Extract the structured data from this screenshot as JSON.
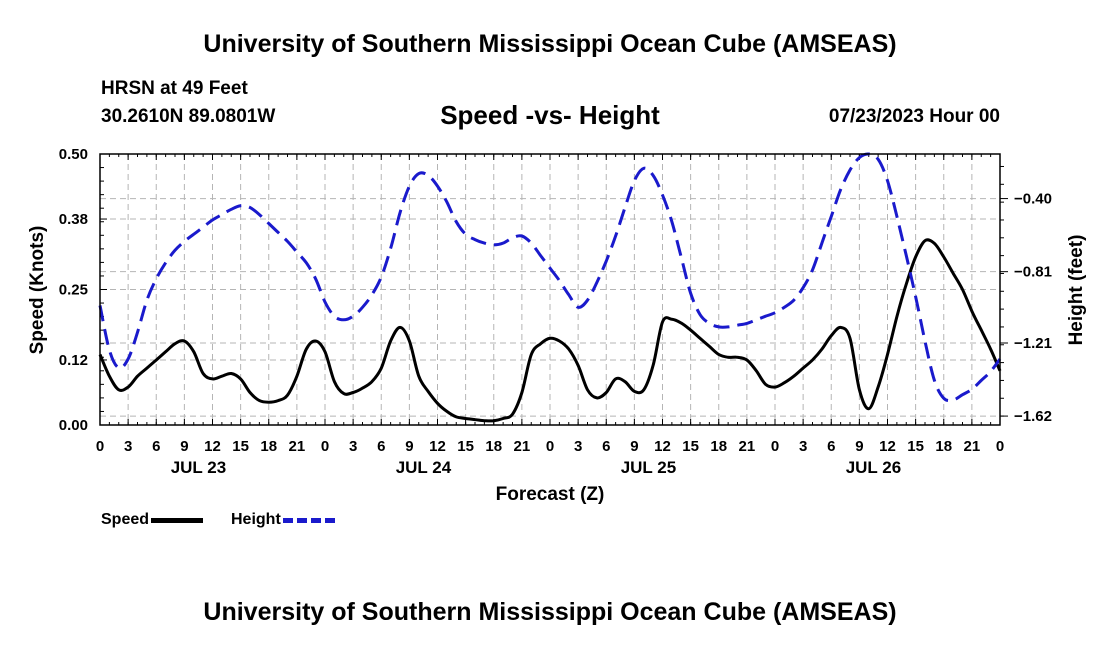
{
  "header": {
    "title_top": "University of Southern Mississippi Ocean Cube (AMSEAS)",
    "station": "HRSN at 49 Feet",
    "coords": "30.2610N  89.0801W",
    "subtitle": "Speed -vs- Height",
    "datetime": "07/23/2023 Hour 00"
  },
  "footer": {
    "title_bottom": "University of Southern Mississippi Ocean Cube (AMSEAS)"
  },
  "legend": {
    "speed_label": "Speed",
    "height_label": "Height",
    "speed_color": "#000000",
    "height_color": "#1a1acc"
  },
  "chart_data": {
    "type": "line",
    "title": "Speed -vs- Height",
    "xlabel": "Forecast (Z)",
    "ylabel_left": "Speed (Knots)",
    "ylabel_right": "Height (feet)",
    "x_range": [
      0,
      96
    ],
    "x_ticks": [
      0,
      3,
      6,
      9,
      12,
      15,
      18,
      21,
      24,
      27,
      30,
      33,
      36,
      39,
      42,
      45,
      48,
      51,
      54,
      57,
      60,
      63,
      66,
      69,
      72,
      75,
      78,
      81,
      84,
      87,
      90,
      93,
      96
    ],
    "x_tick_labels": [
      "0",
      "3",
      "6",
      "9",
      "12",
      "15",
      "18",
      "21",
      "0",
      "3",
      "6",
      "9",
      "12",
      "15",
      "18",
      "21",
      "0",
      "3",
      "6",
      "9",
      "12",
      "15",
      "18",
      "21",
      "0",
      "3",
      "6",
      "9",
      "12",
      "15",
      "18",
      "21",
      "0"
    ],
    "day_labels": [
      {
        "text": "JUL 23",
        "hour": 10.5
      },
      {
        "text": "JUL 24",
        "hour": 34.5
      },
      {
        "text": "JUL 25",
        "hour": 58.5
      },
      {
        "text": "JUL 26",
        "hour": 82.5
      }
    ],
    "ylim_left": [
      0,
      0.5
    ],
    "yticks_left": [
      0.0,
      0.12,
      0.25,
      0.38,
      0.5
    ],
    "ytick_labels_left": [
      "0.00",
      "0.12",
      "0.25",
      "0.38",
      "0.50"
    ],
    "ylim_right": [
      -1.67,
      -0.15
    ],
    "yticks_right": [
      -1.62,
      -1.21,
      -0.81,
      -0.4
    ],
    "ytick_labels_right": [
      "−1.62",
      "−1.21",
      "−0.81",
      "−0.40"
    ],
    "grid": true,
    "series": [
      {
        "name": "Speed",
        "axis": "left",
        "style": "solid",
        "x": [
          0,
          1,
          2,
          3,
          4,
          5,
          6,
          7,
          8,
          9,
          10,
          11,
          12,
          13,
          14,
          15,
          16,
          17,
          18,
          19,
          20,
          21,
          22,
          23,
          24,
          25,
          26,
          27,
          28,
          29,
          30,
          31,
          32,
          33,
          34,
          35,
          36,
          37,
          38,
          39,
          40,
          41,
          42,
          43,
          44,
          45,
          46,
          47,
          48,
          49,
          50,
          51,
          52,
          53,
          54,
          55,
          56,
          57,
          58,
          59,
          60,
          61,
          62,
          63,
          64,
          65,
          66,
          67,
          68,
          69,
          70,
          71,
          72,
          73,
          74,
          75,
          76,
          77,
          78,
          79,
          80,
          81,
          82,
          83,
          84,
          85,
          86,
          87,
          88,
          89,
          90,
          91,
          92,
          93,
          94,
          95,
          96
        ],
        "values": [
          0.13,
          0.09,
          0.065,
          0.07,
          0.09,
          0.105,
          0.12,
          0.135,
          0.15,
          0.155,
          0.135,
          0.095,
          0.085,
          0.09,
          0.095,
          0.085,
          0.06,
          0.045,
          0.042,
          0.045,
          0.055,
          0.09,
          0.14,
          0.155,
          0.135,
          0.08,
          0.058,
          0.06,
          0.068,
          0.08,
          0.105,
          0.155,
          0.18,
          0.155,
          0.09,
          0.062,
          0.04,
          0.025,
          0.015,
          0.012,
          0.01,
          0.008,
          0.008,
          0.012,
          0.02,
          0.06,
          0.13,
          0.15,
          0.16,
          0.155,
          0.14,
          0.11,
          0.065,
          0.05,
          0.06,
          0.085,
          0.08,
          0.062,
          0.065,
          0.11,
          0.19,
          0.195,
          0.188,
          0.175,
          0.16,
          0.145,
          0.13,
          0.125,
          0.125,
          0.12,
          0.1,
          0.075,
          0.07,
          0.078,
          0.09,
          0.105,
          0.12,
          0.14,
          0.165,
          0.18,
          0.16,
          0.065,
          0.03,
          0.07,
          0.13,
          0.2,
          0.26,
          0.31,
          0.34,
          0.335,
          0.31,
          0.28,
          0.25,
          0.21,
          0.175,
          0.14,
          0.1
        ]
      },
      {
        "name": "Height",
        "axis": "right",
        "style": "dashed",
        "x": [
          0,
          1,
          2,
          3,
          4,
          5,
          6,
          7,
          8,
          9,
          10,
          11,
          12,
          13,
          14,
          15,
          16,
          17,
          18,
          19,
          20,
          21,
          22,
          23,
          24,
          25,
          26,
          27,
          28,
          29,
          30,
          31,
          32,
          33,
          34,
          35,
          36,
          37,
          38,
          39,
          40,
          41,
          42,
          43,
          44,
          45,
          46,
          47,
          48,
          49,
          50,
          51,
          52,
          53,
          54,
          55,
          56,
          57,
          58,
          59,
          60,
          61,
          62,
          63,
          64,
          65,
          66,
          67,
          68,
          69,
          70,
          71,
          72,
          73,
          74,
          75,
          76,
          77,
          78,
          79,
          80,
          81,
          82,
          83,
          84,
          85,
          86,
          87,
          88,
          89,
          90,
          91,
          92,
          93,
          94,
          95,
          96
        ],
        "values": [
          -1.0,
          -1.25,
          -1.35,
          -1.3,
          -1.15,
          -0.97,
          -0.85,
          -0.76,
          -0.69,
          -0.64,
          -0.6,
          -0.56,
          -0.52,
          -0.49,
          -0.46,
          -0.44,
          -0.45,
          -0.49,
          -0.54,
          -0.59,
          -0.64,
          -0.7,
          -0.76,
          -0.85,
          -0.98,
          -1.06,
          -1.08,
          -1.06,
          -1.01,
          -0.94,
          -0.84,
          -0.68,
          -0.48,
          -0.33,
          -0.26,
          -0.27,
          -0.33,
          -0.42,
          -0.53,
          -0.6,
          -0.63,
          -0.65,
          -0.66,
          -0.65,
          -0.62,
          -0.61,
          -0.65,
          -0.72,
          -0.79,
          -0.86,
          -0.94,
          -1.01,
          -0.97,
          -0.87,
          -0.75,
          -0.61,
          -0.45,
          -0.3,
          -0.23,
          -0.27,
          -0.38,
          -0.53,
          -0.73,
          -0.93,
          -1.05,
          -1.1,
          -1.12,
          -1.12,
          -1.11,
          -1.1,
          -1.08,
          -1.06,
          -1.04,
          -1.01,
          -0.97,
          -0.9,
          -0.8,
          -0.65,
          -0.5,
          -0.35,
          -0.24,
          -0.17,
          -0.15,
          -0.18,
          -0.3,
          -0.5,
          -0.72,
          -0.95,
          -1.2,
          -1.42,
          -1.52,
          -1.53,
          -1.5,
          -1.47,
          -1.42,
          -1.37,
          -1.3
        ]
      }
    ]
  }
}
